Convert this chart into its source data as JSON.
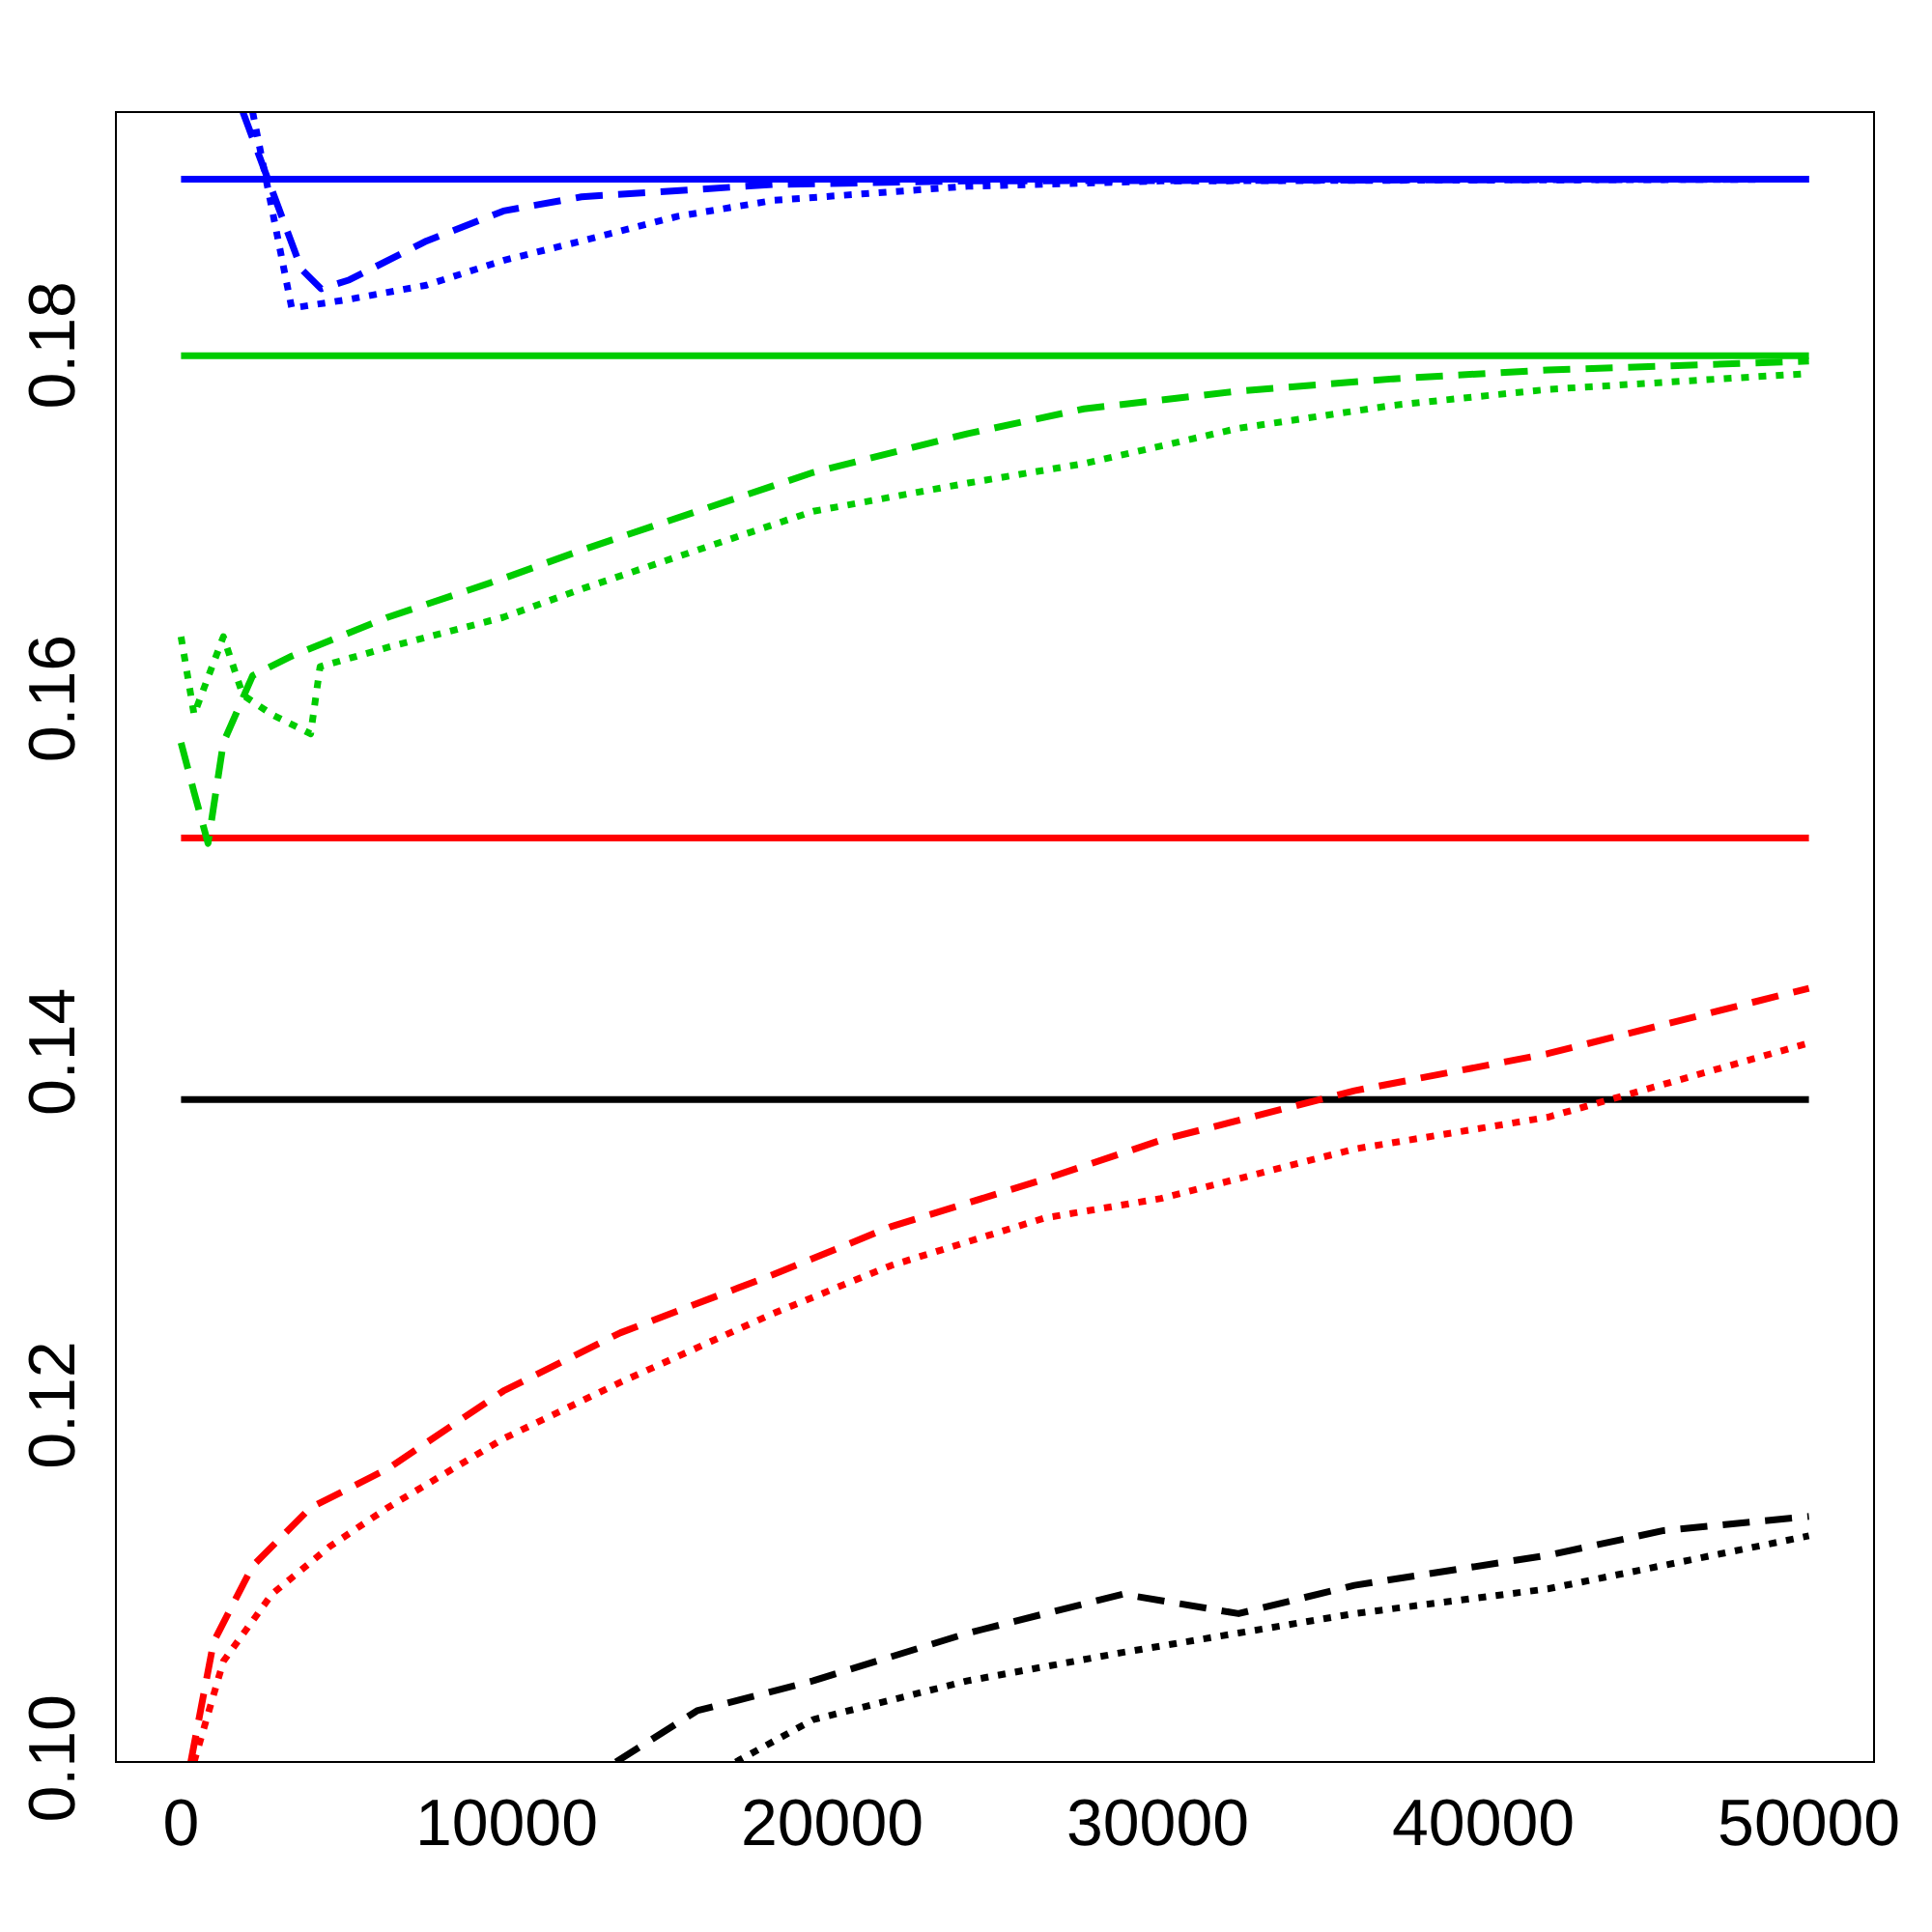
{
  "chart_data": {
    "type": "line",
    "xlim": [
      -2000,
      52000
    ],
    "ylim": [
      0.0998,
      0.1932
    ],
    "xticks": [
      0,
      10000,
      20000,
      30000,
      40000,
      50000
    ],
    "yticks": [
      {
        "value": 0.1,
        "label": "0.10"
      },
      {
        "value": 0.12,
        "label": "0.12"
      },
      {
        "value": 0.14,
        "label": "0.14"
      },
      {
        "value": 0.16,
        "label": "0.16"
      },
      {
        "value": 0.18,
        "label": "0.18"
      }
    ],
    "grid": false,
    "legend": false,
    "marker": "none",
    "series": [
      {
        "color": "#0000ff",
        "line_style": "solid",
        "x": [
          0,
          50000
        ],
        "values": [
          0.1894,
          0.1894
        ]
      },
      {
        "color": "#0000ff",
        "line_style": "dashed",
        "x": [
          1900,
          3700,
          4300,
          5170,
          7540,
          9900,
          12300,
          18200,
          24170,
          50000
        ],
        "values": [
          0.1932,
          0.1843,
          0.1832,
          0.1837,
          0.1859,
          0.1876,
          0.1884,
          0.1891,
          0.1893,
          0.1894
        ]
      },
      {
        "color": "#0000ff",
        "line_style": "dotted",
        "x": [
          2200,
          3400,
          5170,
          7540,
          9900,
          12300,
          15260,
          18200,
          24170,
          30100,
          50000
        ],
        "values": [
          0.1932,
          0.1821,
          0.1826,
          0.1834,
          0.1848,
          0.1859,
          0.1873,
          0.1882,
          0.189,
          0.1893,
          0.1894
        ]
      },
      {
        "color": "#00cc00",
        "line_style": "solid",
        "x": [
          0,
          50000
        ],
        "values": [
          0.1794,
          0.1794
        ]
      },
      {
        "color": "#00cc00",
        "line_style": "dashed",
        "x": [
          0,
          400,
          830,
          1300,
          2200,
          3400,
          6350,
          9900,
          12300,
          15850,
          19420,
          24170,
          27730,
          32480,
          37230,
          41980,
          50000
        ],
        "values": [
          0.1575,
          0.1547,
          0.1518,
          0.1575,
          0.1613,
          0.1624,
          0.1646,
          0.1668,
          0.1684,
          0.1706,
          0.1728,
          0.175,
          0.1764,
          0.1774,
          0.1781,
          0.1786,
          0.1791
        ]
      },
      {
        "color": "#00cc00",
        "line_style": "dotted",
        "x": [
          0,
          400,
          1300,
          1900,
          2790,
          3980,
          4270,
          6350,
          9900,
          12300,
          15850,
          19420,
          24170,
          27730,
          32480,
          37230,
          41980,
          50000
        ],
        "values": [
          0.1635,
          0.1591,
          0.1635,
          0.1602,
          0.1591,
          0.158,
          0.1618,
          0.1629,
          0.1646,
          0.1662,
          0.1684,
          0.1706,
          0.1722,
          0.1733,
          0.1753,
          0.1766,
          0.1775,
          0.1784
        ]
      },
      {
        "color": "#ff0000",
        "line_style": "solid",
        "x": [
          0,
          50000
        ],
        "values": [
          0.1521,
          0.1521
        ]
      },
      {
        "color": "#ff0000",
        "line_style": "dashed",
        "x": [
          300,
          1000,
          2200,
          3980,
          6350,
          9900,
          13500,
          18200,
          21800,
          26540,
          30100,
          36040,
          41980,
          50000
        ],
        "values": [
          0.0998,
          0.1066,
          0.1109,
          0.1142,
          0.1164,
          0.1208,
          0.1241,
          0.1274,
          0.1301,
          0.1328,
          0.135,
          0.1378,
          0.1399,
          0.1436
        ]
      },
      {
        "color": "#ff0000",
        "line_style": "dotted",
        "x": [
          400,
          1300,
          2790,
          4570,
          6350,
          9900,
          13500,
          18200,
          21800,
          26540,
          30100,
          36040,
          41980,
          50000
        ],
        "values": [
          0.0998,
          0.1055,
          0.1093,
          0.112,
          0.1142,
          0.1181,
          0.1213,
          0.1252,
          0.1279,
          0.1306,
          0.1317,
          0.1345,
          0.1363,
          0.1405
        ]
      },
      {
        "color": "#000000",
        "line_style": "solid",
        "x": [
          0,
          50000
        ],
        "values": [
          0.1373,
          0.1373
        ]
      },
      {
        "color": "#000000",
        "line_style": "dashed",
        "x": [
          13360,
          15850,
          19420,
          24170,
          28920,
          32480,
          36040,
          41980,
          45540,
          50000
        ],
        "values": [
          0.0998,
          0.1027,
          0.1044,
          0.1071,
          0.1093,
          0.1082,
          0.1098,
          0.1115,
          0.1129,
          0.1137
        ]
      },
      {
        "color": "#000000",
        "line_style": "dotted",
        "x": [
          17040,
          19420,
          24170,
          28920,
          32480,
          36040,
          41980,
          50000
        ],
        "values": [
          0.0998,
          0.1022,
          0.1044,
          0.106,
          0.1071,
          0.1082,
          0.1096,
          0.1126
        ]
      }
    ]
  }
}
